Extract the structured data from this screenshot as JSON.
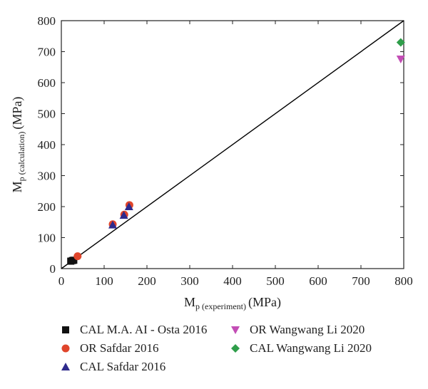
{
  "chart_data": {
    "type": "scatter",
    "xlabel": {
      "main": "M",
      "sub": "p (experiment)",
      "unit": "(MPa)"
    },
    "ylabel": {
      "main": "M",
      "sub": "p (calculation)",
      "unit": "(MPa)"
    },
    "xlim": [
      0,
      800
    ],
    "ylim": [
      0,
      800
    ],
    "xticks": [
      "0",
      "100",
      "200",
      "300",
      "400",
      "500",
      "600",
      "700",
      "800"
    ],
    "yticks": [
      "0",
      "100",
      "200",
      "300",
      "400",
      "500",
      "600",
      "700",
      "800"
    ],
    "reference_line": {
      "from": [
        0,
        0
      ],
      "to": [
        800,
        800
      ],
      "color": "#000000"
    },
    "legend_position": "bottom",
    "series": [
      {
        "name": "CAL M.A. AI - Osta 2016",
        "marker": "square",
        "color": "#111111",
        "points": [
          [
            22,
            24
          ],
          [
            26,
            26
          ],
          [
            29,
            27
          ]
        ]
      },
      {
        "name": "OR Safdar 2016",
        "marker": "circle",
        "color": "#e0452b",
        "points": [
          [
            38,
            40
          ],
          [
            120,
            143
          ],
          [
            147,
            174
          ],
          [
            159,
            205
          ]
        ]
      },
      {
        "name": "CAL Safdar 2016",
        "marker": "triangle-up",
        "color": "#2e2a8c",
        "points": [
          [
            120,
            141
          ],
          [
            146,
            172
          ],
          [
            158,
            200
          ]
        ]
      },
      {
        "name": "OR Wangwang Li 2020",
        "marker": "triangle-down",
        "color": "#c34db5",
        "points": [
          [
            793,
            676
          ]
        ]
      },
      {
        "name": "CAL Wangwang Li 2020",
        "marker": "diamond",
        "color": "#2f9e4a",
        "points": [
          [
            793,
            730
          ]
        ]
      }
    ]
  }
}
